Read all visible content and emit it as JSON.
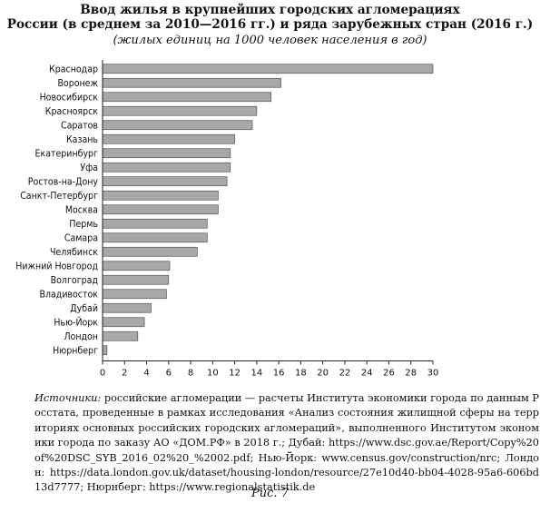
{
  "title_line1": "Ввод жилья в крупнейших городских агломерациях",
  "title_line2": "России (в среднем за 2010—2016 гг.) и ряда зарубежных стран (2016 г.)",
  "subtitle": "(жилых единиц на 1000 человек населения в год)",
  "source_lead": "Источники:",
  "source_text": " российские агломерации — расчеты Института экономики города по данным Росстата, проведенные в рамках исследования «Анализ состояния жилищной сферы на территориях основных российских городских агломераций», выполненного Институтом экономики города по заказу АО «ДОМ.РФ» в 2018 г.; Дубай: https://www.dsc.gov.ae/Report/Copy%20of%20DSC_SYB_2016_02%20_%2002.pdf; Нью-Йорк: www.census.gov/construction/nrc; Лондон: https://data.london.gov.uk/dataset/housing-london/resource/27e10d40-bb04-4028-95a6-606bd13d7777; Нюрнберг: https://www.regionalstatistik.de",
  "figure_caption": "Рис. 7",
  "colors": {
    "bar_fill": "#a8a8a8",
    "bar_stroke": "#555555"
  },
  "chart_data": {
    "type": "bar",
    "orientation": "horizontal",
    "categories": [
      "Краснодар",
      "Воронеж",
      "Новосибирск",
      "Красноярск",
      "Саратов",
      "Казань",
      "Екатеринбург",
      "Уфа",
      "Ростов-на-Дону",
      "Санкт-Петербург",
      "Москва",
      "Пермь",
      "Самара",
      "Челябинск",
      "Нижний Новгород",
      "Волгоград",
      "Владивосток",
      "Дубай",
      "Нью-Йорк",
      "Лондон",
      "Нюрнберг"
    ],
    "values": [
      30.0,
      16.2,
      15.3,
      14.0,
      13.6,
      12.0,
      11.6,
      11.6,
      11.3,
      10.5,
      10.5,
      9.5,
      9.5,
      8.6,
      6.1,
      6.0,
      5.8,
      4.4,
      3.8,
      3.2,
      0.4
    ],
    "xlim": [
      0,
      30
    ],
    "xticks": [
      0,
      2,
      4,
      6,
      8,
      10,
      12,
      14,
      16,
      18,
      20,
      22,
      24,
      26,
      28,
      30
    ],
    "grid": false
  }
}
